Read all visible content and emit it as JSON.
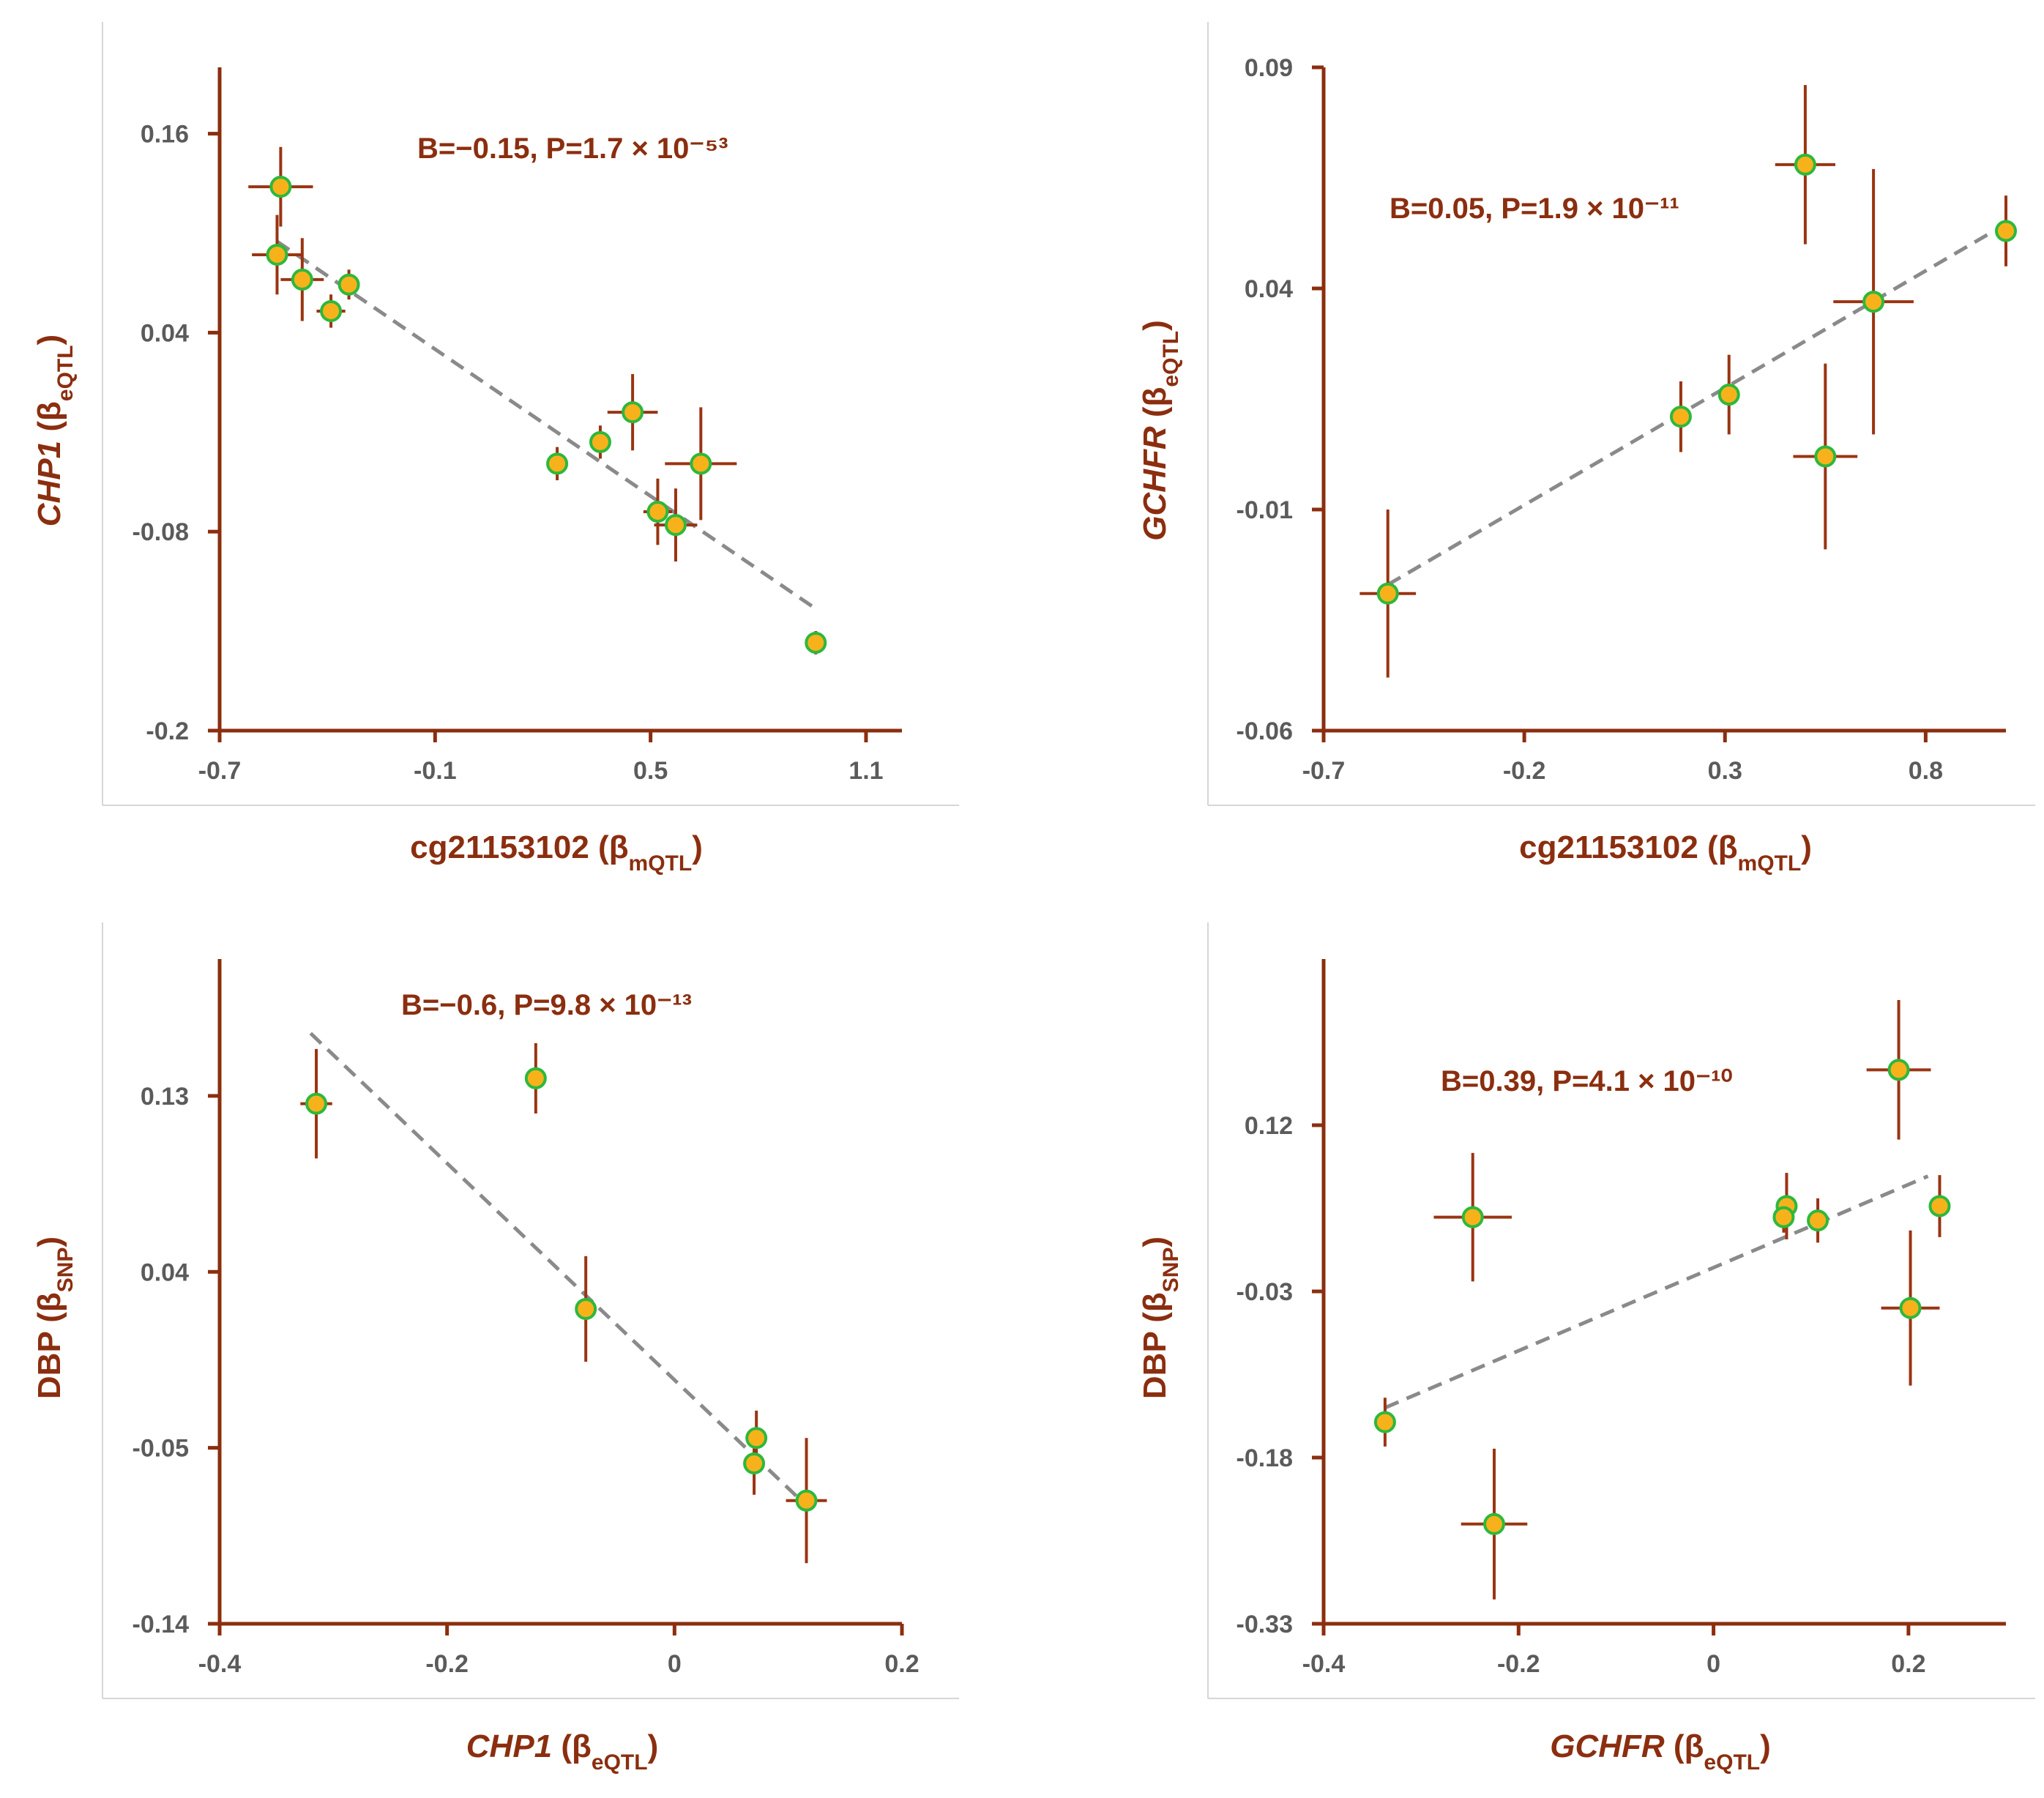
{
  "chart_data": [
    {
      "type": "scatter",
      "panel": "top-left",
      "annotation": "B=−0.15, P=1.7 × 10⁻⁵³",
      "xlabel": {
        "main": "cg21153102 (β",
        "sub": "mQTL",
        "end": ")"
      },
      "ylabel": {
        "gene": "CHP1",
        "main": " (β",
        "sub": "eQTL",
        "end": ")"
      },
      "xlim": [
        -0.7,
        1.2
      ],
      "ylim": [
        -0.2,
        0.2
      ],
      "xticks": [
        {
          "v": -0.7,
          "label": "-0.7"
        },
        {
          "v": -0.1,
          "label": "-0.1"
        },
        {
          "v": 0.5,
          "label": "0.5"
        },
        {
          "v": 1.1,
          "label": "1.1"
        }
      ],
      "yticks": [
        {
          "v": 0.16,
          "label": "0.16"
        },
        {
          "v": 0.04,
          "label": "0.04"
        },
        {
          "v": -0.08,
          "label": "-0.08"
        },
        {
          "v": -0.2,
          "label": "-0.2"
        }
      ],
      "fit": [
        [
          -0.54,
          0.095
        ],
        [
          0.95,
          -0.125
        ]
      ],
      "points": [
        {
          "x": -0.53,
          "y": 0.128,
          "xerr": 0.09,
          "yerr": 0.024
        },
        {
          "x": -0.54,
          "y": 0.087,
          "xerr": 0.07,
          "yerr": 0.024
        },
        {
          "x": -0.47,
          "y": 0.072,
          "xerr": 0.06,
          "yerr": 0.025
        },
        {
          "x": -0.34,
          "y": 0.069,
          "xerr": 0.0,
          "yerr": 0.009
        },
        {
          "x": -0.39,
          "y": 0.053,
          "xerr": 0.04,
          "yerr": 0.01
        },
        {
          "x": 0.45,
          "y": -0.008,
          "xerr": 0.07,
          "yerr": 0.023
        },
        {
          "x": 0.36,
          "y": -0.026,
          "xerr": 0.0,
          "yerr": 0.01
        },
        {
          "x": 0.24,
          "y": -0.039,
          "xerr": 0.0,
          "yerr": 0.01
        },
        {
          "x": 0.64,
          "y": -0.039,
          "xerr": 0.1,
          "yerr": 0.034
        },
        {
          "x": 0.52,
          "y": -0.068,
          "xerr": 0.04,
          "yerr": 0.02
        },
        {
          "x": 0.57,
          "y": -0.076,
          "xerr": 0.06,
          "yerr": 0.022
        },
        {
          "x": 0.96,
          "y": -0.147,
          "xerr": 0.0,
          "yerr": 0.007
        }
      ]
    },
    {
      "type": "scatter",
      "panel": "top-right",
      "annotation": "B=0.05, P=1.9 × 10⁻¹¹",
      "xlabel": {
        "main": "cg21153102 (β",
        "sub": "mQTL",
        "end": ")"
      },
      "ylabel": {
        "gene": "GCHFR",
        "main": " (β",
        "sub": "eQTL",
        "end": ")"
      },
      "xlim": [
        -0.7,
        1.0
      ],
      "ylim": [
        -0.06,
        0.09
      ],
      "xticks": [
        {
          "v": -0.7,
          "label": "-0.7"
        },
        {
          "v": -0.2,
          "label": "-0.2"
        },
        {
          "v": 0.3,
          "label": "0.3"
        },
        {
          "v": 0.8,
          "label": "0.8"
        }
      ],
      "yticks": [
        {
          "v": 0.09,
          "label": "0.09"
        },
        {
          "v": 0.04,
          "label": "0.04"
        },
        {
          "v": -0.01,
          "label": "-0.01"
        },
        {
          "v": -0.06,
          "label": "-0.06"
        }
      ],
      "fit": [
        [
          -0.54,
          -0.027
        ],
        [
          0.97,
          0.053
        ]
      ],
      "points": [
        {
          "x": -0.54,
          "y": -0.029,
          "xerr": 0.07,
          "yerr": 0.019
        },
        {
          "x": 0.19,
          "y": 0.011,
          "xerr": 0.0,
          "yerr": 0.008
        },
        {
          "x": 0.31,
          "y": 0.016,
          "xerr": 0.0,
          "yerr": 0.009
        },
        {
          "x": 0.5,
          "y": 0.068,
          "xerr": 0.075,
          "yerr": 0.018
        },
        {
          "x": 0.55,
          "y": 0.002,
          "xerr": 0.08,
          "yerr": 0.021
        },
        {
          "x": 0.67,
          "y": 0.037,
          "xerr": 0.1,
          "yerr": 0.03
        },
        {
          "x": 1.0,
          "y": 0.053,
          "xerr": 0.0,
          "yerr": 0.008
        }
      ]
    },
    {
      "type": "scatter",
      "panel": "bottom-left",
      "annotation": "B=−0.6, P=9.8 × 10⁻¹³",
      "xlabel": {
        "gene": "CHP1",
        "main": " (β",
        "sub": "eQTL",
        "end": ")"
      },
      "ylabel": {
        "main": "DBP (β",
        "sub": "SNP",
        "end": ")"
      },
      "xlim": [
        -0.4,
        0.2
      ],
      "ylim": [
        -0.14,
        0.2
      ],
      "xticks": [
        {
          "v": -0.4,
          "label": "-0.4"
        },
        {
          "v": -0.2,
          "label": "-0.2"
        },
        {
          "v": 0,
          "label": "0"
        },
        {
          "v": 0.2,
          "label": "0.2"
        }
      ],
      "yticks": [
        {
          "v": 0.13,
          "label": "0.13"
        },
        {
          "v": 0.04,
          "label": "0.04"
        },
        {
          "v": -0.05,
          "label": "-0.05"
        },
        {
          "v": -0.14,
          "label": "-0.14"
        }
      ],
      "fit": [
        [
          -0.32,
          0.162
        ],
        [
          0.115,
          -0.079
        ]
      ],
      "points": [
        {
          "x": -0.315,
          "y": 0.126,
          "xerr": 0.014,
          "yerr": 0.028
        },
        {
          "x": -0.122,
          "y": 0.139,
          "xerr": 0.0,
          "yerr": 0.018
        },
        {
          "x": -0.078,
          "y": 0.021,
          "xerr": 0.009,
          "yerr": 0.027
        },
        {
          "x": 0.072,
          "y": -0.045,
          "xerr": 0.0,
          "yerr": 0.014
        },
        {
          "x": 0.07,
          "y": -0.058,
          "xerr": 0.0,
          "yerr": 0.016
        },
        {
          "x": 0.116,
          "y": -0.077,
          "xerr": 0.018,
          "yerr": 0.032
        }
      ]
    },
    {
      "type": "scatter",
      "panel": "bottom-right",
      "annotation": "B=0.39, P=4.1 × 10⁻¹⁰",
      "xlabel": {
        "gene": "GCHFR",
        "main": " (β",
        "sub": "eQTL",
        "end": ")"
      },
      "ylabel": {
        "main": "DBP (β",
        "sub": "SNP",
        "end": ")"
      },
      "xlim": [
        -0.4,
        0.3
      ],
      "ylim": [
        -0.33,
        0.27
      ],
      "xticks": [
        {
          "v": -0.4,
          "label": "-0.4"
        },
        {
          "v": -0.2,
          "label": "-0.2"
        },
        {
          "v": 0,
          "label": "0"
        },
        {
          "v": 0.2,
          "label": "0.2"
        }
      ],
      "yticks": [
        {
          "v": 0.12,
          "label": "0.12"
        },
        {
          "v": -0.03,
          "label": "-0.03"
        },
        {
          "v": -0.18,
          "label": "-0.18"
        },
        {
          "v": -0.33,
          "label": "-0.33"
        }
      ],
      "fit": [
        [
          -0.337,
          -0.135
        ],
        [
          0.22,
          0.074
        ]
      ],
      "points": [
        {
          "x": -0.337,
          "y": -0.148,
          "xerr": 0.0,
          "yerr": 0.022
        },
        {
          "x": -0.247,
          "y": 0.037,
          "xerr": 0.04,
          "yerr": 0.058
        },
        {
          "x": -0.225,
          "y": -0.24,
          "xerr": 0.034,
          "yerr": 0.068
        },
        {
          "x": 0.075,
          "y": 0.047,
          "xerr": 0.0,
          "yerr": 0.03
        },
        {
          "x": 0.072,
          "y": 0.037,
          "xerr": 0.0,
          "yerr": 0.014
        },
        {
          "x": 0.107,
          "y": 0.034,
          "xerr": 0.0,
          "yerr": 0.02
        },
        {
          "x": 0.19,
          "y": 0.17,
          "xerr": 0.033,
          "yerr": 0.063
        },
        {
          "x": 0.202,
          "y": -0.045,
          "xerr": 0.03,
          "yerr": 0.07
        },
        {
          "x": 0.232,
          "y": 0.047,
          "xerr": 0.0,
          "yerr": 0.028
        }
      ]
    }
  ]
}
